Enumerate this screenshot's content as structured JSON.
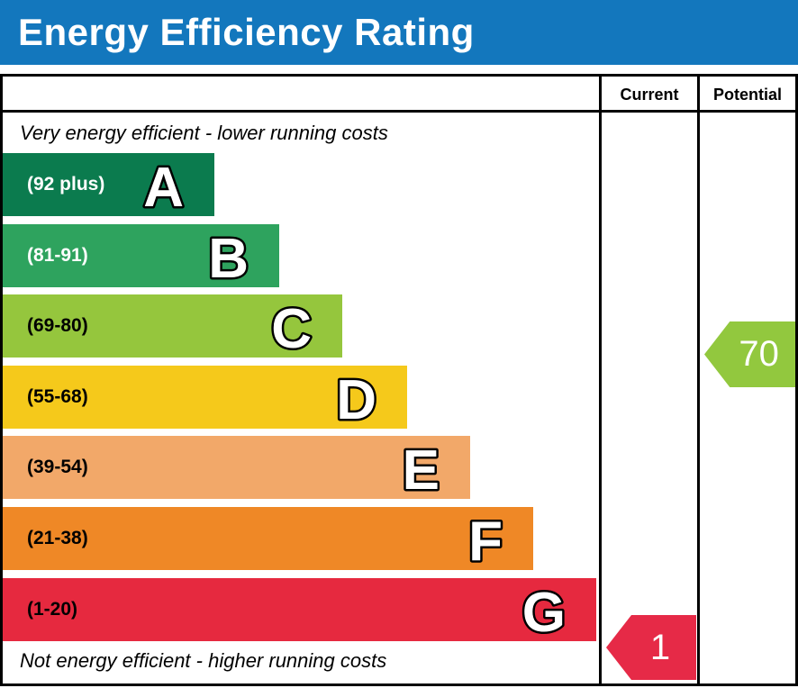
{
  "title": "Energy Efficiency Rating",
  "colors": {
    "title_bar_bg": "#1377bd",
    "title_text": "#ffffff",
    "border": "#000000",
    "band_letter_fill": "#ffffff",
    "band_letter_outline": "#000000"
  },
  "header": {
    "current_label": "Current",
    "potential_label": "Potential"
  },
  "notes": {
    "top": "Very energy efficient - lower running costs",
    "bottom": "Not energy efficient - higher running costs"
  },
  "chart_data": {
    "type": "bar",
    "title": "Energy Efficiency Rating",
    "categories": [
      "A",
      "B",
      "C",
      "D",
      "E",
      "F",
      "G"
    ],
    "band_ranges": [
      "(92 plus)",
      "(81-91)",
      "(69-80)",
      "(55-68)",
      "(39-54)",
      "(21-38)",
      "(1-20)"
    ],
    "band_colors": [
      "#0b7b4e",
      "#2ea35e",
      "#95c63d",
      "#f5c91b",
      "#f2a869",
      "#ef8826",
      "#e6293f"
    ],
    "band_label_colors": [
      "#ffffff",
      "#ffffff",
      "#000000",
      "#000000",
      "#000000",
      "#000000",
      "#000000"
    ],
    "columns": [
      "Current",
      "Potential"
    ],
    "current": {
      "value": 1,
      "band": "G",
      "arrow_color": "#e62a47"
    },
    "potential": {
      "value": 70,
      "band": "C",
      "arrow_color": "#92c83e"
    }
  }
}
